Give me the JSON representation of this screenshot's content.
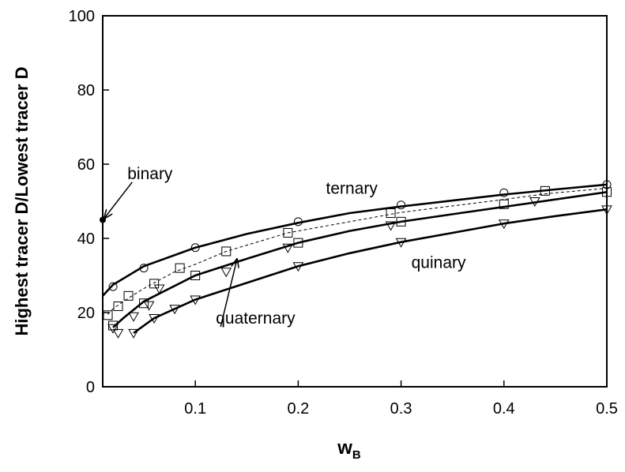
{
  "chart_data": {
    "type": "line",
    "xlabel": "w",
    "xlabel_sub": "B",
    "ylabel": "Highest tracer D/Lowest tracer D",
    "xlim": [
      0.01,
      0.5
    ],
    "ylim": [
      0,
      100
    ],
    "x_ticks": [
      {
        "value": 0.1,
        "label": "0.1"
      },
      {
        "value": 0.2,
        "label": "0.2"
      },
      {
        "value": 0.3,
        "label": "0.3"
      },
      {
        "value": 0.4,
        "label": "0.4"
      },
      {
        "value": 0.5,
        "label": "0.5"
      }
    ],
    "y_ticks": [
      {
        "value": 0,
        "label": "0"
      },
      {
        "value": 20,
        "label": "20"
      },
      {
        "value": 40,
        "label": "40"
      },
      {
        "value": 60,
        "label": "60"
      },
      {
        "value": 80,
        "label": "80"
      },
      {
        "value": 100,
        "label": "100"
      }
    ],
    "grid": false,
    "series": [
      {
        "name": "binary",
        "style": "point",
        "color": "#000000",
        "points": [
          {
            "x": 0.01,
            "y": 45
          }
        ]
      },
      {
        "name": "ternary",
        "style": "solid",
        "color": "#000000",
        "line": [
          {
            "x": 0.01,
            "y": 24.5
          },
          {
            "x": 0.02,
            "y": 27.5
          },
          {
            "x": 0.05,
            "y": 32.5
          },
          {
            "x": 0.1,
            "y": 37.5
          },
          {
            "x": 0.15,
            "y": 41.2
          },
          {
            "x": 0.2,
            "y": 44.2
          },
          {
            "x": 0.25,
            "y": 46.8
          },
          {
            "x": 0.3,
            "y": 48.6
          },
          {
            "x": 0.35,
            "y": 50.2
          },
          {
            "x": 0.4,
            "y": 51.8
          },
          {
            "x": 0.45,
            "y": 53.2
          },
          {
            "x": 0.5,
            "y": 54.5
          }
        ],
        "marker": "circle",
        "points": [
          {
            "x": 0.02,
            "y": 27
          },
          {
            "x": 0.05,
            "y": 32
          },
          {
            "x": 0.1,
            "y": 37.5
          },
          {
            "x": 0.2,
            "y": 44.5
          },
          {
            "x": 0.3,
            "y": 49
          },
          {
            "x": 0.4,
            "y": 52.3
          },
          {
            "x": 0.5,
            "y": 54.5
          }
        ]
      },
      {
        "name": "",
        "style": "dashed",
        "color": "#000000",
        "line": [
          {
            "x": 0.015,
            "y": 19.5
          },
          {
            "x": 0.02,
            "y": 21
          },
          {
            "x": 0.03,
            "y": 23
          },
          {
            "x": 0.05,
            "y": 26.5
          },
          {
            "x": 0.08,
            "y": 31
          },
          {
            "x": 0.1,
            "y": 33
          },
          {
            "x": 0.13,
            "y": 36.5
          },
          {
            "x": 0.19,
            "y": 41.5
          },
          {
            "x": 0.25,
            "y": 44.5
          },
          {
            "x": 0.3,
            "y": 47
          },
          {
            "x": 0.4,
            "y": 50.5
          },
          {
            "x": 0.44,
            "y": 52
          },
          {
            "x": 0.5,
            "y": 53.5
          }
        ],
        "marker": "square",
        "points": [
          {
            "x": 0.015,
            "y": 19.3
          },
          {
            "x": 0.02,
            "y": 16.5
          },
          {
            "x": 0.025,
            "y": 21.7
          },
          {
            "x": 0.035,
            "y": 24.5
          },
          {
            "x": 0.05,
            "y": 22.5
          },
          {
            "x": 0.06,
            "y": 27.8
          },
          {
            "x": 0.085,
            "y": 32
          },
          {
            "x": 0.1,
            "y": 30
          },
          {
            "x": 0.13,
            "y": 36.5
          },
          {
            "x": 0.19,
            "y": 41.5
          },
          {
            "x": 0.2,
            "y": 38.8
          },
          {
            "x": 0.29,
            "y": 46.8
          },
          {
            "x": 0.3,
            "y": 44.5
          },
          {
            "x": 0.4,
            "y": 49.2
          },
          {
            "x": 0.44,
            "y": 52.8
          },
          {
            "x": 0.5,
            "y": 52.5
          }
        ]
      },
      {
        "name": "quaternary",
        "style": "solid",
        "color": "#000000",
        "line": [
          {
            "x": 0.02,
            "y": 16
          },
          {
            "x": 0.03,
            "y": 18.5
          },
          {
            "x": 0.05,
            "y": 23
          },
          {
            "x": 0.1,
            "y": 30
          },
          {
            "x": 0.15,
            "y": 34.5
          },
          {
            "x": 0.2,
            "y": 38.8
          },
          {
            "x": 0.25,
            "y": 42
          },
          {
            "x": 0.3,
            "y": 44.5
          },
          {
            "x": 0.35,
            "y": 46.5
          },
          {
            "x": 0.4,
            "y": 48.5
          },
          {
            "x": 0.45,
            "y": 50.5
          },
          {
            "x": 0.5,
            "y": 52.5
          }
        ],
        "marker": "triangle-down",
        "points": [
          {
            "x": 0.02,
            "y": 15.8
          },
          {
            "x": 0.025,
            "y": 14.5
          },
          {
            "x": 0.04,
            "y": 19
          },
          {
            "x": 0.055,
            "y": 22
          },
          {
            "x": 0.065,
            "y": 26.5
          },
          {
            "x": 0.13,
            "y": 31
          },
          {
            "x": 0.19,
            "y": 37.5
          },
          {
            "x": 0.29,
            "y": 43.5
          }
        ]
      },
      {
        "name": "quinary",
        "style": "solid",
        "color": "#000000",
        "line": [
          {
            "x": 0.04,
            "y": 14.5
          },
          {
            "x": 0.06,
            "y": 18.5
          },
          {
            "x": 0.1,
            "y": 23.5
          },
          {
            "x": 0.15,
            "y": 28
          },
          {
            "x": 0.2,
            "y": 32.5
          },
          {
            "x": 0.25,
            "y": 36
          },
          {
            "x": 0.3,
            "y": 39
          },
          {
            "x": 0.35,
            "y": 41.5
          },
          {
            "x": 0.4,
            "y": 44
          },
          {
            "x": 0.45,
            "y": 46
          },
          {
            "x": 0.5,
            "y": 47.8
          }
        ],
        "marker": "triangle-down",
        "points": [
          {
            "x": 0.04,
            "y": 14.5
          },
          {
            "x": 0.06,
            "y": 18.5
          },
          {
            "x": 0.08,
            "y": 21
          },
          {
            "x": 0.1,
            "y": 23.5
          },
          {
            "x": 0.2,
            "y": 32.5
          },
          {
            "x": 0.3,
            "y": 39
          },
          {
            "x": 0.4,
            "y": 44
          },
          {
            "x": 0.43,
            "y": 50
          },
          {
            "x": 0.5,
            "y": 47.8
          }
        ]
      }
    ],
    "annotations": [
      {
        "text": "binary",
        "x": 0.034,
        "y": 56,
        "arrow_to": {
          "x": 0.01,
          "y": 45
        }
      },
      {
        "text": "ternary",
        "x": 0.227,
        "y": 52
      },
      {
        "text": "quinary",
        "x": 0.31,
        "y": 32
      },
      {
        "text": "quaternary",
        "x": 0.12,
        "y": 17,
        "arrow_to": {
          "x": 0.139,
          "y": 34
        }
      }
    ]
  }
}
